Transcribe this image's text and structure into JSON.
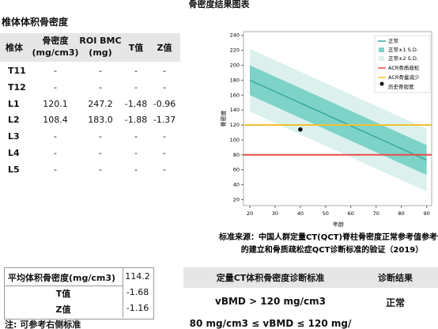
{
  "title": "骨密度结果图表",
  "vbmd": {
    "title": "椎体体积骨密度",
    "headers": [
      "椎体",
      "骨密度\n(mg/cm3)",
      "ROI BMC\n(mg)",
      "T值",
      "Z值"
    ],
    "rows": [
      [
        "T11",
        "-",
        "-",
        "-",
        "-"
      ],
      [
        "T12",
        "-",
        "-",
        "-",
        "-"
      ],
      [
        "L1",
        "120.1",
        "247.2",
        "-1.48",
        "-0.96"
      ],
      [
        "L2",
        "108.4",
        "183.0",
        "-1.88",
        "-1.37"
      ],
      [
        "L3",
        "-",
        "-",
        "-",
        "-"
      ],
      [
        "L4",
        "-",
        "-",
        "-",
        "-"
      ],
      [
        "L5",
        "-",
        "-",
        "-",
        "-"
      ]
    ]
  },
  "summary": {
    "rows": [
      [
        "平均体积骨密度(mg/cm3)",
        "114.2"
      ],
      [
        "T值",
        "-1.68"
      ],
      [
        "Z值",
        "-1.16"
      ]
    ],
    "note": "注: 可参考右侧标准"
  },
  "criteria": {
    "headers": [
      "定量CT体积骨密度诊断标准",
      "诊断结果"
    ],
    "rows": [
      [
        "vBMD > 120 mg/cm3",
        "正常"
      ],
      [
        "80 mg/cm3 ≤ vBMD ≤ 120 mg/"
      ]
    ]
  },
  "chart": {
    "xlabel": "年龄",
    "ylabel": "骨密度",
    "xlim": [
      17.5,
      92
    ],
    "xticks": [
      20,
      30,
      40,
      50,
      60,
      70,
      80,
      90
    ],
    "ylim": [
      12,
      245
    ],
    "yticks": [
      20,
      40,
      60,
      80,
      100,
      120,
      140,
      160,
      180,
      200,
      220,
      240
    ],
    "x": [
      20,
      90
    ],
    "mean": [
      180,
      73
    ],
    "sd1_upper": [
      200,
      93
    ],
    "sd1_lower": [
      160,
      53
    ],
    "sd2_upper": [
      222,
      115
    ],
    "sd2_lower": [
      138,
      31
    ],
    "osteoporosis": 80,
    "osteopenia": 120,
    "point": {
      "x": 40,
      "y": 114
    },
    "colors": {
      "mean": "#3aa89c",
      "sd1": "#7ed3c9",
      "sd2": "#dcf1ed",
      "osteoporosis": "#e84c4c",
      "osteopenia": "#f2c230",
      "point": "#111111"
    },
    "legend": [
      "正常",
      "正常±1 S.D.",
      "正常±2 S.D.",
      "ACR骨质疏松",
      "ACR骨量减少",
      "历史骨密度"
    ],
    "source": [
      "标准来源：中国人群定量CT(QCT)脊柱骨密度正常参考值参考值",
      "的建立和骨质疏松症QCT诊断标准的验证（2019）"
    ]
  }
}
